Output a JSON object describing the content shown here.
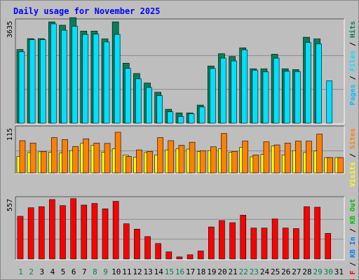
{
  "chart_data": {
    "type": "bar",
    "title": "Daily usage for November 2025",
    "colors": {
      "background": "#bebebe",
      "frame": "#ffffff",
      "title": "#0000ff",
      "hits": "#00805c",
      "files": "#00e0ff",
      "pages": "#00c0ff",
      "sites": "#ff8000",
      "visits": "#ffff00",
      "kb": "#ff0000",
      "kb_in": "#0080ff",
      "kb_out": "#00c000",
      "weekend_day": "#00805c",
      "weekday": "#000000"
    },
    "categories": [
      "1",
      "2",
      "3",
      "4",
      "5",
      "6",
      "7",
      "8",
      "9",
      "10",
      "11",
      "12",
      "13",
      "14",
      "15",
      "16",
      "17",
      "18",
      "19",
      "20",
      "21",
      "22",
      "23",
      "24",
      "25",
      "26",
      "27",
      "28",
      "29",
      "30",
      "31"
    ],
    "weekend_days": [
      1,
      2,
      8,
      9,
      15,
      16,
      22,
      23,
      29,
      30
    ],
    "panels": [
      {
        "id": "hits-files-pages",
        "ymax_label": "3635",
        "ymax": 3635,
        "legend": [
          {
            "text": "Pages",
            "color": "#00c0ff"
          },
          {
            "text": " / ",
            "color": "#000000"
          },
          {
            "text": "Files",
            "color": "#00e0ff"
          },
          {
            "text": " / ",
            "color": "#000000"
          },
          {
            "text": "Hits",
            "color": "#00805c"
          }
        ],
        "series": [
          {
            "name": "Hits",
            "color": "#00805c",
            "values": [
              2640,
              3030,
              3030,
              3630,
              3510,
              3780,
              3300,
              3300,
              3020,
              3630,
              2150,
              1780,
              1440,
              1110,
              500,
              370,
              370,
              650,
              2050,
              2490,
              2390,
              2700,
              1950,
              1950,
              2470,
              1950,
              1920,
              3080,
              3020,
              null,
              null
            ]
          },
          {
            "name": "Files",
            "color": "#00e0ff",
            "values": [
              2560,
              2990,
              2990,
              3560,
              3330,
              3470,
              3180,
              3190,
              2910,
              3180,
              1960,
              1590,
              1280,
              990,
              410,
              240,
              340,
              580,
              1960,
              2330,
              2230,
              2630,
              1900,
              1840,
              2330,
              1860,
              1850,
              2890,
              2840,
              1520,
              null
            ]
          },
          {
            "name": "Pages",
            "color": "#00c0ff",
            "values": [
              2560,
              2990,
              2990,
              3560,
              3330,
              3470,
              3180,
              3190,
              2910,
              3180,
              1960,
              1590,
              1280,
              990,
              410,
              240,
              340,
              580,
              1960,
              2330,
              2230,
              2630,
              1900,
              1840,
              2330,
              1860,
              1850,
              2890,
              2840,
              1520,
              null
            ]
          }
        ]
      },
      {
        "id": "visits-sites",
        "ymax_label": "115",
        "ymax": 115,
        "legend": [
          {
            "text": "Visits",
            "color": "#ffff00"
          },
          {
            "text": " / ",
            "color": "#000000"
          },
          {
            "text": "Sites",
            "color": "#ff8000"
          }
        ],
        "series": [
          {
            "name": "Sites",
            "color": "#ff8000",
            "values": [
              84,
              78,
              56,
              92,
              87,
              69,
              89,
              78,
              77,
              106,
              43,
              60,
              56,
              92,
              84,
              72,
              80,
              58,
              68,
              103,
              56,
              83,
              47,
              81,
              73,
              78,
              83,
              83,
              101,
              40,
              40
            ]
          },
          {
            "name": "Visits",
            "color": "#ffff00",
            "values": [
              43,
              53,
              55,
              54,
              52,
              58,
              77,
              72,
              54,
              63,
              46,
              41,
              53,
              47,
              60,
              63,
              62,
              56,
              58,
              63,
              54,
              67,
              42,
              48,
              70,
              47,
              58,
              53,
              57,
              40,
              40
            ]
          }
        ]
      },
      {
        "id": "kb",
        "ymax_label": "557",
        "ymax": 557,
        "legend": [
          {
            "text": "KB F",
            "color": "#ff0000"
          },
          {
            "text": " / ",
            "color": "#000000"
          },
          {
            "text": "KB In",
            "color": "#0080ff"
          },
          {
            "text": " / ",
            "color": "#000000"
          },
          {
            "text": "KB Out",
            "color": "#00c000"
          }
        ],
        "series": [
          {
            "name": "KB F",
            "color": "#ff0000",
            "values": [
              400,
              480,
              490,
              557,
              500,
              565,
              505,
              520,
              470,
              540,
              330,
              280,
              210,
              145,
              67,
              20,
              40,
              75,
              300,
              360,
              340,
              410,
              290,
              290,
              375,
              290,
              285,
              490,
              485,
              240,
              null
            ]
          }
        ]
      }
    ]
  }
}
